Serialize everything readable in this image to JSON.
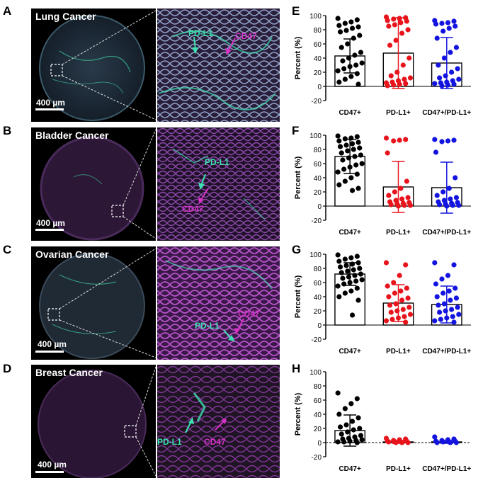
{
  "panel_letters": [
    "A",
    "B",
    "C",
    "D",
    "E",
    "F",
    "G",
    "H"
  ],
  "micrographs": [
    {
      "title": "Lung Cancer",
      "scale": "400 µm",
      "pd_label": "PD-L1",
      "cd_label": "CD47"
    },
    {
      "title": "Bladder Cancer",
      "scale": "400 µm",
      "pd_label": "PD-L1",
      "cd_label": "CD47"
    },
    {
      "title": "Ovarian Cancer",
      "scale": "400 µm",
      "pd_label": "PD-L1",
      "cd_label": "CD47"
    },
    {
      "title": "Breast Cancer",
      "scale": "400 µm",
      "pd_label": "PD-L1",
      "cd_label": "CD47"
    }
  ],
  "colors": {
    "cd47": "#000000",
    "pdl1": "#e8141c",
    "double": "#1414e0",
    "green": "#3de0b0",
    "magenta": "#d633c6"
  },
  "chart_data": [
    {
      "panel": "E",
      "type": "scatter",
      "ylabel": "Percent (%)",
      "ylim": [
        -20,
        100
      ],
      "yticks": [
        "-20",
        "0",
        "20",
        "40",
        "60",
        "80",
        "100"
      ],
      "categories": [
        "CD47",
        "PD-L1",
        "CD47/PD-L1"
      ],
      "series": [
        {
          "name": "CD47+",
          "mean": 43,
          "sd": 24,
          "values": [
            96,
            94,
            91,
            89,
            86,
            84,
            82,
            79,
            77,
            72,
            68,
            60,
            55,
            48,
            44,
            40,
            36,
            33,
            30,
            28,
            25,
            22,
            18,
            14,
            10,
            6,
            3
          ]
        },
        {
          "name": "PD-L1+",
          "mean": 47,
          "sd": 50,
          "values": [
            98,
            97,
            96,
            95,
            93,
            92,
            90,
            87,
            85,
            80,
            75,
            65,
            58,
            40,
            30,
            20,
            15,
            12,
            10,
            8,
            6,
            5,
            4,
            3,
            2,
            1
          ]
        },
        {
          "name": "CD47+/PD-L1+",
          "mean": 33,
          "sd": 36,
          "values": [
            93,
            92,
            90,
            89,
            88,
            85,
            82,
            78,
            68,
            55,
            48,
            40,
            30,
            25,
            20,
            15,
            12,
            10,
            8,
            6,
            5,
            4,
            3,
            2,
            1
          ]
        }
      ]
    },
    {
      "panel": "F",
      "type": "scatter",
      "ylabel": "Percent (%)",
      "ylim": [
        -20,
        100
      ],
      "yticks": [
        "-20",
        "0",
        "20",
        "40",
        "60",
        "80",
        "100"
      ],
      "categories": [
        "CD47",
        "PD-L1",
        "CD47/PD-L1"
      ],
      "series": [
        {
          "name": "CD47+",
          "mean": 70,
          "sd": 24,
          "values": [
            99,
            98,
            96,
            95,
            92,
            90,
            88,
            86,
            84,
            82,
            80,
            78,
            75,
            72,
            70,
            68,
            65,
            60,
            58,
            55,
            52,
            48,
            45,
            40,
            35,
            30,
            25,
            22
          ]
        },
        {
          "name": "PD-L1+",
          "mean": 27,
          "sd": 36,
          "values": [
            96,
            94,
            93,
            92,
            75,
            35,
            25,
            20,
            15,
            12,
            10,
            8,
            6,
            5,
            4,
            3,
            2,
            1,
            1,
            0
          ]
        },
        {
          "name": "CD47+/PD-L1+",
          "mean": 26,
          "sd": 36,
          "values": [
            94,
            93,
            92,
            91,
            76,
            40,
            25,
            20,
            15,
            12,
            10,
            8,
            6,
            5,
            4,
            3,
            2,
            1,
            1,
            0
          ]
        }
      ]
    },
    {
      "panel": "G",
      "type": "scatter",
      "ylabel": "Percent (%)",
      "ylim": [
        -20,
        100
      ],
      "yticks": [
        "-20",
        "0",
        "20",
        "40",
        "60",
        "80",
        "100"
      ],
      "categories": [
        "CD47",
        "PD-L1",
        "CD47/PD-L1"
      ],
      "series": [
        {
          "name": "CD47+",
          "mean": 72,
          "sd": 16,
          "values": [
            99,
            97,
            95,
            93,
            90,
            88,
            86,
            84,
            82,
            80,
            78,
            76,
            74,
            72,
            70,
            68,
            66,
            64,
            62,
            60,
            58,
            55,
            52,
            48,
            45,
            40,
            35,
            14
          ]
        },
        {
          "name": "PD-L1+",
          "mean": 31,
          "sd": 26,
          "values": [
            88,
            85,
            70,
            60,
            55,
            52,
            48,
            45,
            40,
            38,
            35,
            30,
            28,
            25,
            22,
            20,
            18,
            15,
            12,
            10,
            8,
            6,
            4
          ]
        },
        {
          "name": "CD47+/PD-L1+",
          "mean": 29,
          "sd": 26,
          "values": [
            88,
            85,
            70,
            65,
            58,
            52,
            48,
            45,
            40,
            38,
            35,
            30,
            28,
            25,
            22,
            20,
            18,
            15,
            12,
            10,
            8,
            6,
            4
          ]
        }
      ]
    },
    {
      "panel": "H",
      "type": "scatter",
      "ylabel": "Percent (%)",
      "ylim": [
        -20,
        100
      ],
      "yticks": [
        "-20",
        "0",
        "20",
        "40",
        "60",
        "80",
        "100"
      ],
      "categories": [
        "CD47",
        "PD-L1",
        "CD47/PD-L1"
      ],
      "series": [
        {
          "name": "CD47+",
          "mean": 17,
          "sd": 22,
          "values": [
            70,
            62,
            55,
            48,
            40,
            35,
            30,
            25,
            22,
            20,
            18,
            15,
            12,
            10,
            8,
            6,
            5,
            4,
            3,
            2,
            1,
            1,
            0
          ]
        },
        {
          "name": "PD-L1+",
          "mean": 1,
          "sd": 2,
          "values": [
            6,
            5,
            4,
            3,
            2,
            2,
            1,
            1,
            1,
            0,
            0,
            0
          ]
        },
        {
          "name": "CD47+/PD-L1+",
          "mean": 1,
          "sd": 2,
          "values": [
            8,
            5,
            4,
            3,
            2,
            2,
            1,
            1,
            0,
            0,
            0
          ]
        }
      ]
    }
  ]
}
